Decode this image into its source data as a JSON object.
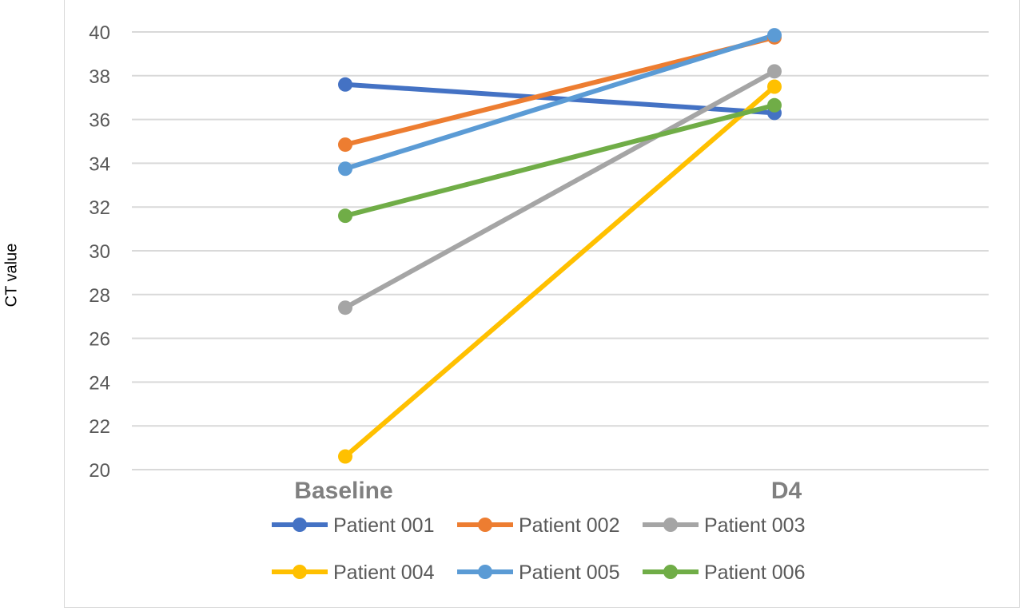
{
  "chart_data": {
    "type": "line",
    "title": "",
    "ylabel": "CT value",
    "xlabel": "",
    "categories": [
      "Baseline",
      "D4"
    ],
    "ylim": [
      20,
      40
    ],
    "yticks": [
      20,
      22,
      24,
      26,
      28,
      30,
      32,
      34,
      36,
      38,
      40
    ],
    "grid": true,
    "legend_position": "bottom",
    "series": [
      {
        "name": "Patient 001",
        "values": [
          37.6,
          36.3
        ],
        "color": "#4472C4"
      },
      {
        "name": "Patient 002",
        "values": [
          34.85,
          39.75
        ],
        "color": "#ED7D31"
      },
      {
        "name": "Patient 003",
        "values": [
          27.4,
          38.2
        ],
        "color": "#A5A5A5"
      },
      {
        "name": "Patient 004",
        "values": [
          20.6,
          37.5
        ],
        "color": "#FFC000"
      },
      {
        "name": "Patient 005",
        "values": [
          33.75,
          39.85
        ],
        "color": "#5B9BD5"
      },
      {
        "name": "Patient 006",
        "values": [
          31.6,
          36.65
        ],
        "color": "#70AD47"
      }
    ]
  }
}
